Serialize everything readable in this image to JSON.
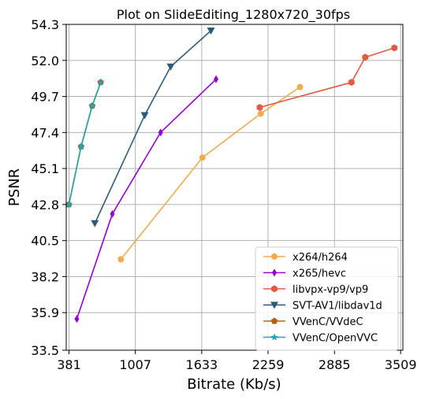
{
  "chart_data": {
    "type": "line",
    "title": "Plot on SlideEditing_1280x720_30fps",
    "xlabel": "Bitrate (Kb/s)",
    "ylabel": "PSNR",
    "xlim": [
      355,
      3530
    ],
    "ylim": [
      33.5,
      54.3
    ],
    "xticks": [
      381,
      1007,
      1633,
      2259,
      2885,
      3509
    ],
    "xtick_labels": [
      "381",
      "1007",
      "1633",
      "2259",
      "2885",
      "3509"
    ],
    "yticks": [
      33.5,
      35.9,
      38.2,
      40.5,
      42.8,
      45.1,
      47.4,
      49.7,
      52.0,
      54.3
    ],
    "ytick_labels": [
      "33.5",
      "35.9",
      "38.2",
      "40.5",
      "42.8",
      "45.1",
      "47.4",
      "49.7",
      "52.0",
      "54.3"
    ],
    "grid": true,
    "legend_position": "bottom-right",
    "series": [
      {
        "name": "x264/h264",
        "color": "#f0ac4f",
        "marker": "circle",
        "x": [
          870,
          1640,
          2190,
          2560
        ],
        "y": [
          39.3,
          45.8,
          48.6,
          50.3
        ]
      },
      {
        "name": "x265/hevc",
        "color": "#9400d3",
        "marker": "thin_diamond",
        "x": [
          455,
          790,
          1245,
          1768
        ],
        "y": [
          35.5,
          42.2,
          47.4,
          50.8
        ]
      },
      {
        "name": "libvpx-vp9/vp9",
        "color": "#e05b42",
        "marker": "hexagon",
        "x": [
          2180,
          3045,
          3175,
          3450
        ],
        "y": [
          49.0,
          50.6,
          52.2,
          52.8
        ]
      },
      {
        "name": "SVT-AV1/libdav1d",
        "color": "#2c5b78",
        "marker": "triangle_down",
        "x": [
          625,
          1095,
          1340,
          1720
        ],
        "y": [
          41.6,
          48.5,
          51.6,
          53.9
        ]
      },
      {
        "name": "VVenC/VVdeC",
        "color": "#b4601c",
        "marker": "pentagon",
        "x": [
          380,
          495,
          600,
          680
        ],
        "y": [
          42.8,
          46.5,
          49.1,
          50.6
        ]
      },
      {
        "name": "VVenC/OpenVVC",
        "color": "#20a4b4",
        "marker": "star",
        "x": [
          380,
          495,
          600,
          680
        ],
        "y": [
          42.8,
          46.5,
          49.1,
          50.6
        ]
      }
    ]
  }
}
